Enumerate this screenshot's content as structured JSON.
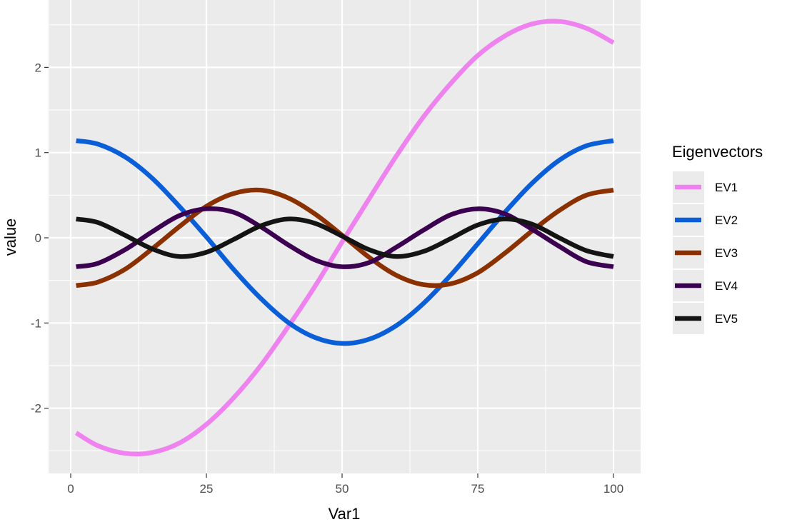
{
  "chart_data": {
    "type": "line",
    "xlabel": "Var1",
    "ylabel": "value",
    "xlim": [
      -3,
      104
    ],
    "ylim": [
      -2.8,
      2.8
    ],
    "x_ticks": [
      0,
      25,
      50,
      75,
      100
    ],
    "x_tick_labels": [
      "0",
      "25",
      "50",
      "75",
      "100"
    ],
    "y_ticks": [
      -2,
      -1,
      0,
      1,
      2
    ],
    "y_tick_labels": [
      "-2",
      "-1",
      "0",
      "1",
      "2"
    ],
    "grid": true,
    "legend": {
      "title": "Eigenvectors",
      "placement": "right"
    },
    "x": [
      1,
      5,
      10,
      15,
      20,
      25,
      30,
      35,
      40,
      45,
      50,
      55,
      60,
      65,
      70,
      75,
      80,
      85,
      90,
      95,
      100
    ],
    "series": [
      {
        "name": "EV1",
        "color": "#EE82EE",
        "values": [
          -2.29,
          -2.44,
          -2.53,
          -2.52,
          -2.41,
          -2.19,
          -1.88,
          -1.5,
          -1.05,
          -0.57,
          -0.05,
          0.46,
          0.96,
          1.42,
          1.81,
          2.14,
          2.37,
          2.51,
          2.54,
          2.46,
          2.29
        ]
      },
      {
        "name": "EV2",
        "color": "#0A5FD8",
        "values": [
          1.14,
          1.1,
          0.95,
          0.7,
          0.37,
          0.01,
          -0.37,
          -0.71,
          -0.99,
          -1.17,
          -1.24,
          -1.19,
          -1.03,
          -0.77,
          -0.44,
          -0.07,
          0.3,
          0.64,
          0.91,
          1.08,
          1.14
        ]
      },
      {
        "name": "EV3",
        "color": "#8B3000",
        "values": [
          -0.56,
          -0.52,
          -0.37,
          -0.13,
          0.13,
          0.37,
          0.52,
          0.56,
          0.47,
          0.28,
          0.03,
          -0.23,
          -0.44,
          -0.55,
          -0.54,
          -0.41,
          -0.18,
          0.08,
          0.32,
          0.5,
          0.56
        ]
      },
      {
        "name": "EV4",
        "color": "#3B0050",
        "values": [
          -0.34,
          -0.3,
          -0.14,
          0.07,
          0.26,
          0.34,
          0.3,
          0.13,
          -0.08,
          -0.26,
          -0.34,
          -0.29,
          -0.11,
          0.09,
          0.27,
          0.34,
          0.28,
          0.1,
          -0.1,
          -0.28,
          -0.34
        ]
      },
      {
        "name": "EV5",
        "color": "#141414",
        "values": [
          0.22,
          0.18,
          0.03,
          -0.13,
          -0.22,
          -0.17,
          -0.02,
          0.14,
          0.22,
          0.17,
          0.02,
          -0.14,
          -0.22,
          -0.16,
          -0.01,
          0.15,
          0.22,
          0.16,
          0.0,
          -0.15,
          -0.22
        ]
      }
    ]
  }
}
